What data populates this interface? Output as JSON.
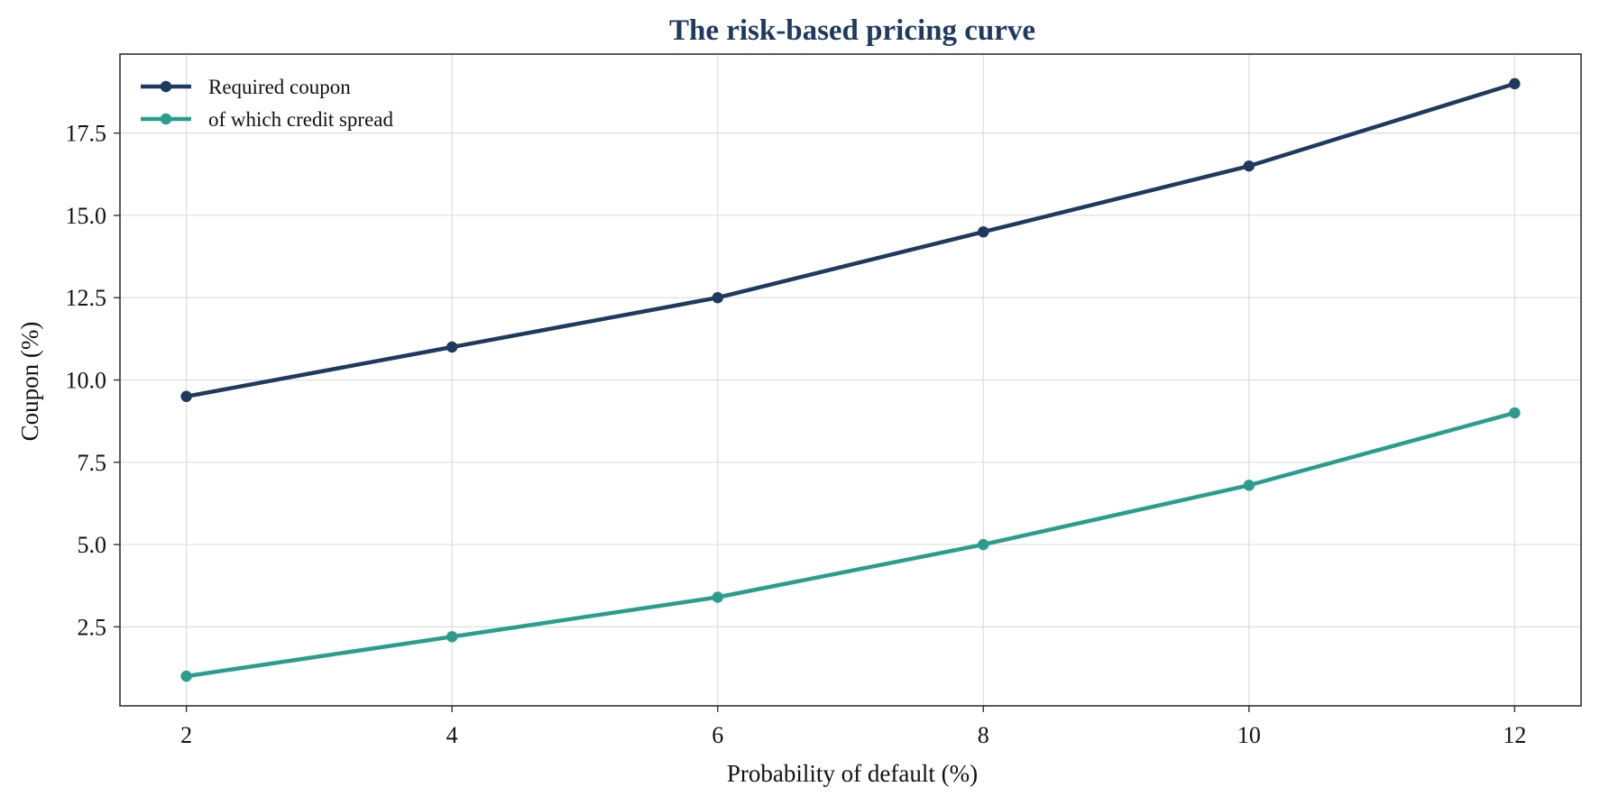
{
  "chart_data": {
    "type": "line",
    "title": "The risk-based pricing curve",
    "xlabel": "Probability of default (%)",
    "ylabel": "Coupon (%)",
    "x": [
      2,
      4,
      6,
      8,
      10,
      12
    ],
    "xticks": [
      "2",
      "4",
      "6",
      "8",
      "10",
      "12"
    ],
    "yticks": [
      "2.5",
      "5.0",
      "7.5",
      "10.0",
      "12.5",
      "15.0",
      "17.5"
    ],
    "xlim": [
      1.5,
      12.5
    ],
    "ylim": [
      0.1,
      19.9
    ],
    "grid": true,
    "legend_position": "top-left",
    "series": [
      {
        "name": "Required coupon",
        "color": "#1f3a5f",
        "values": [
          9.5,
          11.0,
          12.5,
          14.5,
          16.5,
          19.0
        ]
      },
      {
        "name": "of which credit spread",
        "color": "#2a9d8f",
        "values": [
          1.0,
          2.2,
          3.4,
          5.0,
          6.8,
          9.0
        ]
      }
    ],
    "colors": {
      "title": "#1f3a5f",
      "grid": "#dddddd",
      "frame": "#333333"
    }
  }
}
